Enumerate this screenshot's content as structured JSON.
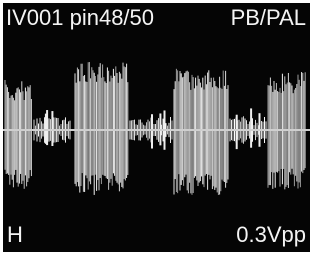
{
  "header": {
    "left": "IV001 pin48/50",
    "right": "PB/PAL"
  },
  "footer": {
    "left": "H",
    "right": "0.3Vpp"
  }
}
